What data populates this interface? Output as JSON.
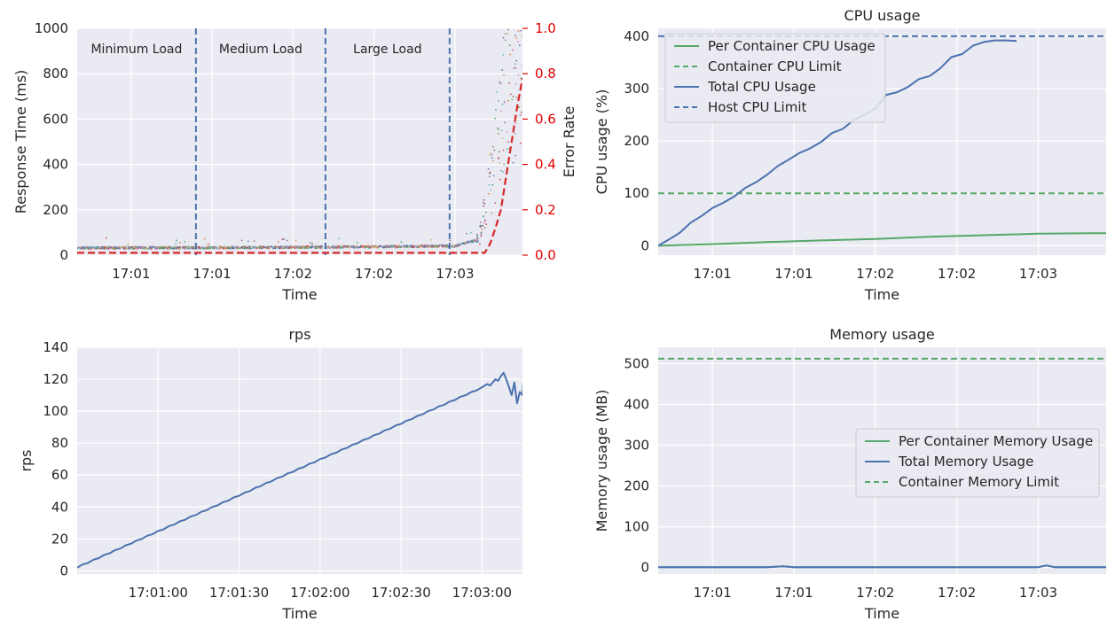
{
  "colors": {
    "plot_bg": "#eaeaf2",
    "grid": "#ffffff",
    "blue": "#4c72b0",
    "green": "#55a868",
    "red": "#d62728",
    "text": "#262626",
    "error_axis": "#e00000"
  },
  "chart_data": [
    {
      "id": "response",
      "type": "scatter",
      "title": "",
      "xlabel": "Time",
      "ylabel": "Response Time (ms)",
      "y2label": "Error Rate",
      "x_unit": "seconds since 17:00:30",
      "xlim": [
        0,
        165
      ],
      "ylim": [
        0,
        1000
      ],
      "y2lim": [
        0,
        1.0
      ],
      "xticks": [
        {
          "x": 20,
          "label": "17:01"
        },
        {
          "x": 50,
          "label": "17:01"
        },
        {
          "x": 80,
          "label": "17:02"
        },
        {
          "x": 110,
          "label": "17:02"
        },
        {
          "x": 140,
          "label": "17:03"
        }
      ],
      "yticks": [
        0,
        200,
        400,
        600,
        800,
        1000
      ],
      "y2ticks": [
        {
          "v": 0.0,
          "label": "0.0"
        },
        {
          "v": 0.2,
          "label": "0.2"
        },
        {
          "v": 0.4,
          "label": "0.4"
        },
        {
          "v": 0.6,
          "label": "0.6"
        },
        {
          "v": 0.8,
          "label": "0.8"
        },
        {
          "v": 1.0,
          "label": "1.0"
        }
      ],
      "phase_lines": [
        44,
        92,
        138
      ],
      "phases": [
        {
          "label": "Minimum Load",
          "x": 22
        },
        {
          "label": "Medium Load",
          "x": 68
        },
        {
          "label": "Large Load",
          "x": 115
        }
      ],
      "baseline_ms": [
        [
          0,
          32
        ],
        [
          60,
          33
        ],
        [
          100,
          36
        ],
        [
          140,
          40
        ],
        [
          149,
          70
        ],
        [
          152,
          250
        ],
        [
          155,
          450
        ],
        [
          158,
          650
        ],
        [
          161,
          800
        ],
        [
          165,
          850
        ]
      ],
      "error_rate": [
        [
          0,
          0.01
        ],
        [
          151,
          0.01
        ],
        [
          153,
          0.05
        ],
        [
          155,
          0.12
        ],
        [
          157,
          0.2
        ],
        [
          159,
          0.35
        ],
        [
          161,
          0.5
        ],
        [
          163,
          0.65
        ],
        [
          165,
          0.78
        ]
      ],
      "grid": true
    },
    {
      "id": "cpu",
      "type": "line",
      "title": "CPU usage",
      "xlabel": "Time",
      "ylabel": "CPU usage (%)",
      "x_unit": "seconds since 17:00:30",
      "xlim": [
        0,
        165
      ],
      "ylim": [
        -18,
        415
      ],
      "xticks": [
        {
          "x": 20,
          "label": "17:01"
        },
        {
          "x": 50,
          "label": "17:01"
        },
        {
          "x": 80,
          "label": "17:02"
        },
        {
          "x": 110,
          "label": "17:02"
        },
        {
          "x": 140,
          "label": "17:03"
        }
      ],
      "yticks": [
        0,
        100,
        200,
        300,
        400
      ],
      "legend": "upper-left",
      "series": [
        {
          "name": "Per Container CPU Usage",
          "color": "#55a868",
          "dashed": false,
          "points": [
            [
              0,
              0
            ],
            [
              20,
              3
            ],
            [
              40,
              7
            ],
            [
              60,
              10
            ],
            [
              80,
              13
            ],
            [
              100,
              17
            ],
            [
              120,
              20
            ],
            [
              140,
              23
            ],
            [
              160,
              24
            ],
            [
              165,
              24
            ]
          ]
        },
        {
          "name": "Container CPU Limit",
          "color": "#55a868",
          "dashed": true,
          "points": [
            [
              0,
              100
            ],
            [
              165,
              100
            ]
          ]
        },
        {
          "name": "Total CPU Usage",
          "color": "#4c72b0",
          "dashed": false,
          "points": [
            [
              0,
              0
            ],
            [
              4,
              12
            ],
            [
              8,
              25
            ],
            [
              12,
              44
            ],
            [
              16,
              57
            ],
            [
              20,
              72
            ],
            [
              24,
              82
            ],
            [
              28,
              94
            ],
            [
              32,
              110
            ],
            [
              36,
              121
            ],
            [
              40,
              135
            ],
            [
              44,
              152
            ],
            [
              48,
              164
            ],
            [
              52,
              177
            ],
            [
              56,
              186
            ],
            [
              60,
              198
            ],
            [
              64,
              215
            ],
            [
              68,
              223
            ],
            [
              72,
              240
            ],
            [
              76,
              250
            ],
            [
              80,
              262
            ],
            [
              84,
              288
            ],
            [
              88,
              293
            ],
            [
              92,
              303
            ],
            [
              96,
              318
            ],
            [
              100,
              324
            ],
            [
              104,
              339
            ],
            [
              108,
              360
            ],
            [
              112,
              366
            ],
            [
              116,
              382
            ],
            [
              120,
              389
            ],
            [
              124,
              392
            ],
            [
              128,
              392
            ],
            [
              132,
              391
            ]
          ]
        },
        {
          "name": "Host CPU Limit",
          "color": "#4c72b0",
          "dashed": true,
          "points": [
            [
              0,
              400
            ],
            [
              165,
              400
            ]
          ]
        }
      ],
      "grid": true
    },
    {
      "id": "rps",
      "type": "line",
      "title": "rps",
      "xlabel": "Time",
      "ylabel": "rps",
      "x_unit": "seconds since 17:00:30",
      "xlim": [
        0,
        165
      ],
      "ylim": [
        -2,
        140
      ],
      "xticks": [
        {
          "x": 30,
          "label": "17:01:00"
        },
        {
          "x": 60,
          "label": "17:01:30"
        },
        {
          "x": 90,
          "label": "17:02:00"
        },
        {
          "x": 120,
          "label": "17:02:30"
        },
        {
          "x": 150,
          "label": "17:03:00"
        }
      ],
      "yticks": [
        0,
        20,
        40,
        60,
        80,
        100,
        120,
        140
      ],
      "series": [
        {
          "name": "",
          "color": "#4c72b0",
          "points": [
            [
              0,
              2
            ],
            [
              2,
              4
            ],
            [
              4,
              5
            ],
            [
              6,
              7
            ],
            [
              8,
              8
            ],
            [
              10,
              10
            ],
            [
              12,
              11
            ],
            [
              14,
              13
            ],
            [
              16,
              14
            ],
            [
              18,
              16
            ],
            [
              20,
              17
            ],
            [
              22,
              19
            ],
            [
              24,
              20
            ],
            [
              26,
              22
            ],
            [
              28,
              23
            ],
            [
              30,
              25
            ],
            [
              32,
              26
            ],
            [
              34,
              28
            ],
            [
              36,
              29
            ],
            [
              38,
              31
            ],
            [
              40,
              32
            ],
            [
              42,
              34
            ],
            [
              44,
              35
            ],
            [
              46,
              37
            ],
            [
              48,
              38
            ],
            [
              50,
              40
            ],
            [
              52,
              41
            ],
            [
              54,
              43
            ],
            [
              56,
              44
            ],
            [
              58,
              46
            ],
            [
              60,
              47
            ],
            [
              62,
              49
            ],
            [
              64,
              50
            ],
            [
              66,
              52
            ],
            [
              68,
              53
            ],
            [
              70,
              55
            ],
            [
              72,
              56
            ],
            [
              74,
              58
            ],
            [
              76,
              59
            ],
            [
              78,
              61
            ],
            [
              80,
              62
            ],
            [
              82,
              64
            ],
            [
              84,
              65
            ],
            [
              86,
              67
            ],
            [
              88,
              68
            ],
            [
              90,
              70
            ],
            [
              92,
              71
            ],
            [
              94,
              73
            ],
            [
              96,
              74
            ],
            [
              98,
              76
            ],
            [
              100,
              77
            ],
            [
              102,
              79
            ],
            [
              104,
              80
            ],
            [
              106,
              82
            ],
            [
              108,
              83
            ],
            [
              110,
              85
            ],
            [
              112,
              86
            ],
            [
              114,
              88
            ],
            [
              116,
              89
            ],
            [
              118,
              91
            ],
            [
              120,
              92
            ],
            [
              122,
              94
            ],
            [
              124,
              95
            ],
            [
              126,
              97
            ],
            [
              128,
              98
            ],
            [
              130,
              100
            ],
            [
              132,
              101
            ],
            [
              134,
              103
            ],
            [
              136,
              104
            ],
            [
              138,
              106
            ],
            [
              140,
              107
            ],
            [
              142,
              109
            ],
            [
              144,
              110
            ],
            [
              146,
              112
            ],
            [
              148,
              113
            ],
            [
              150,
              115
            ],
            [
              152,
              117
            ],
            [
              153,
              116
            ],
            [
              154,
              118
            ],
            [
              155,
              120
            ],
            [
              156,
              119
            ],
            [
              157,
              122
            ],
            [
              158,
              124
            ],
            [
              159,
              120
            ],
            [
              160,
              115
            ],
            [
              161,
              110
            ],
            [
              162,
              118
            ],
            [
              163,
              105
            ],
            [
              164,
              112
            ],
            [
              165,
              110
            ],
            [
              166,
              134
            ],
            [
              167,
              112
            ],
            [
              168,
              122
            ],
            [
              169,
              108
            ],
            [
              170,
              130
            ],
            [
              171,
              95
            ],
            [
              172,
              125
            ],
            [
              173,
              120
            ]
          ]
        }
      ],
      "grid": true
    },
    {
      "id": "memory",
      "type": "line",
      "title": "Memory usage",
      "xlabel": "Time",
      "ylabel": "Memory usage (MB)",
      "x_unit": "seconds since 17:00:30",
      "xlim": [
        0,
        165
      ],
      "ylim": [
        -16,
        540
      ],
      "xticks": [
        {
          "x": 20,
          "label": "17:01"
        },
        {
          "x": 50,
          "label": "17:01"
        },
        {
          "x": 80,
          "label": "17:02"
        },
        {
          "x": 110,
          "label": "17:02"
        },
        {
          "x": 140,
          "label": "17:03"
        }
      ],
      "yticks": [
        0,
        100,
        200,
        300,
        400,
        500
      ],
      "legend": "center-right",
      "series": [
        {
          "name": "Per Container Memory Usage",
          "color": "#55a868",
          "dashed": false,
          "points": [
            [
              0,
              1
            ],
            [
              40,
              1
            ],
            [
              46,
              3
            ],
            [
              50,
              1
            ],
            [
              80,
              1
            ],
            [
              140,
              1
            ],
            [
              143,
              5
            ],
            [
              146,
              1
            ],
            [
              165,
              1
            ]
          ]
        },
        {
          "name": "Total Memory Usage",
          "color": "#4c72b0",
          "dashed": false,
          "points": [
            [
              0,
              1
            ],
            [
              40,
              1
            ],
            [
              46,
              3
            ],
            [
              50,
              1
            ],
            [
              80,
              1
            ],
            [
              140,
              1
            ],
            [
              143,
              5
            ],
            [
              146,
              1
            ],
            [
              165,
              1
            ]
          ]
        },
        {
          "name": "Container Memory Limit",
          "color": "#55a868",
          "dashed": true,
          "points": [
            [
              0,
              512
            ],
            [
              165,
              512
            ]
          ]
        }
      ],
      "grid": true
    }
  ]
}
